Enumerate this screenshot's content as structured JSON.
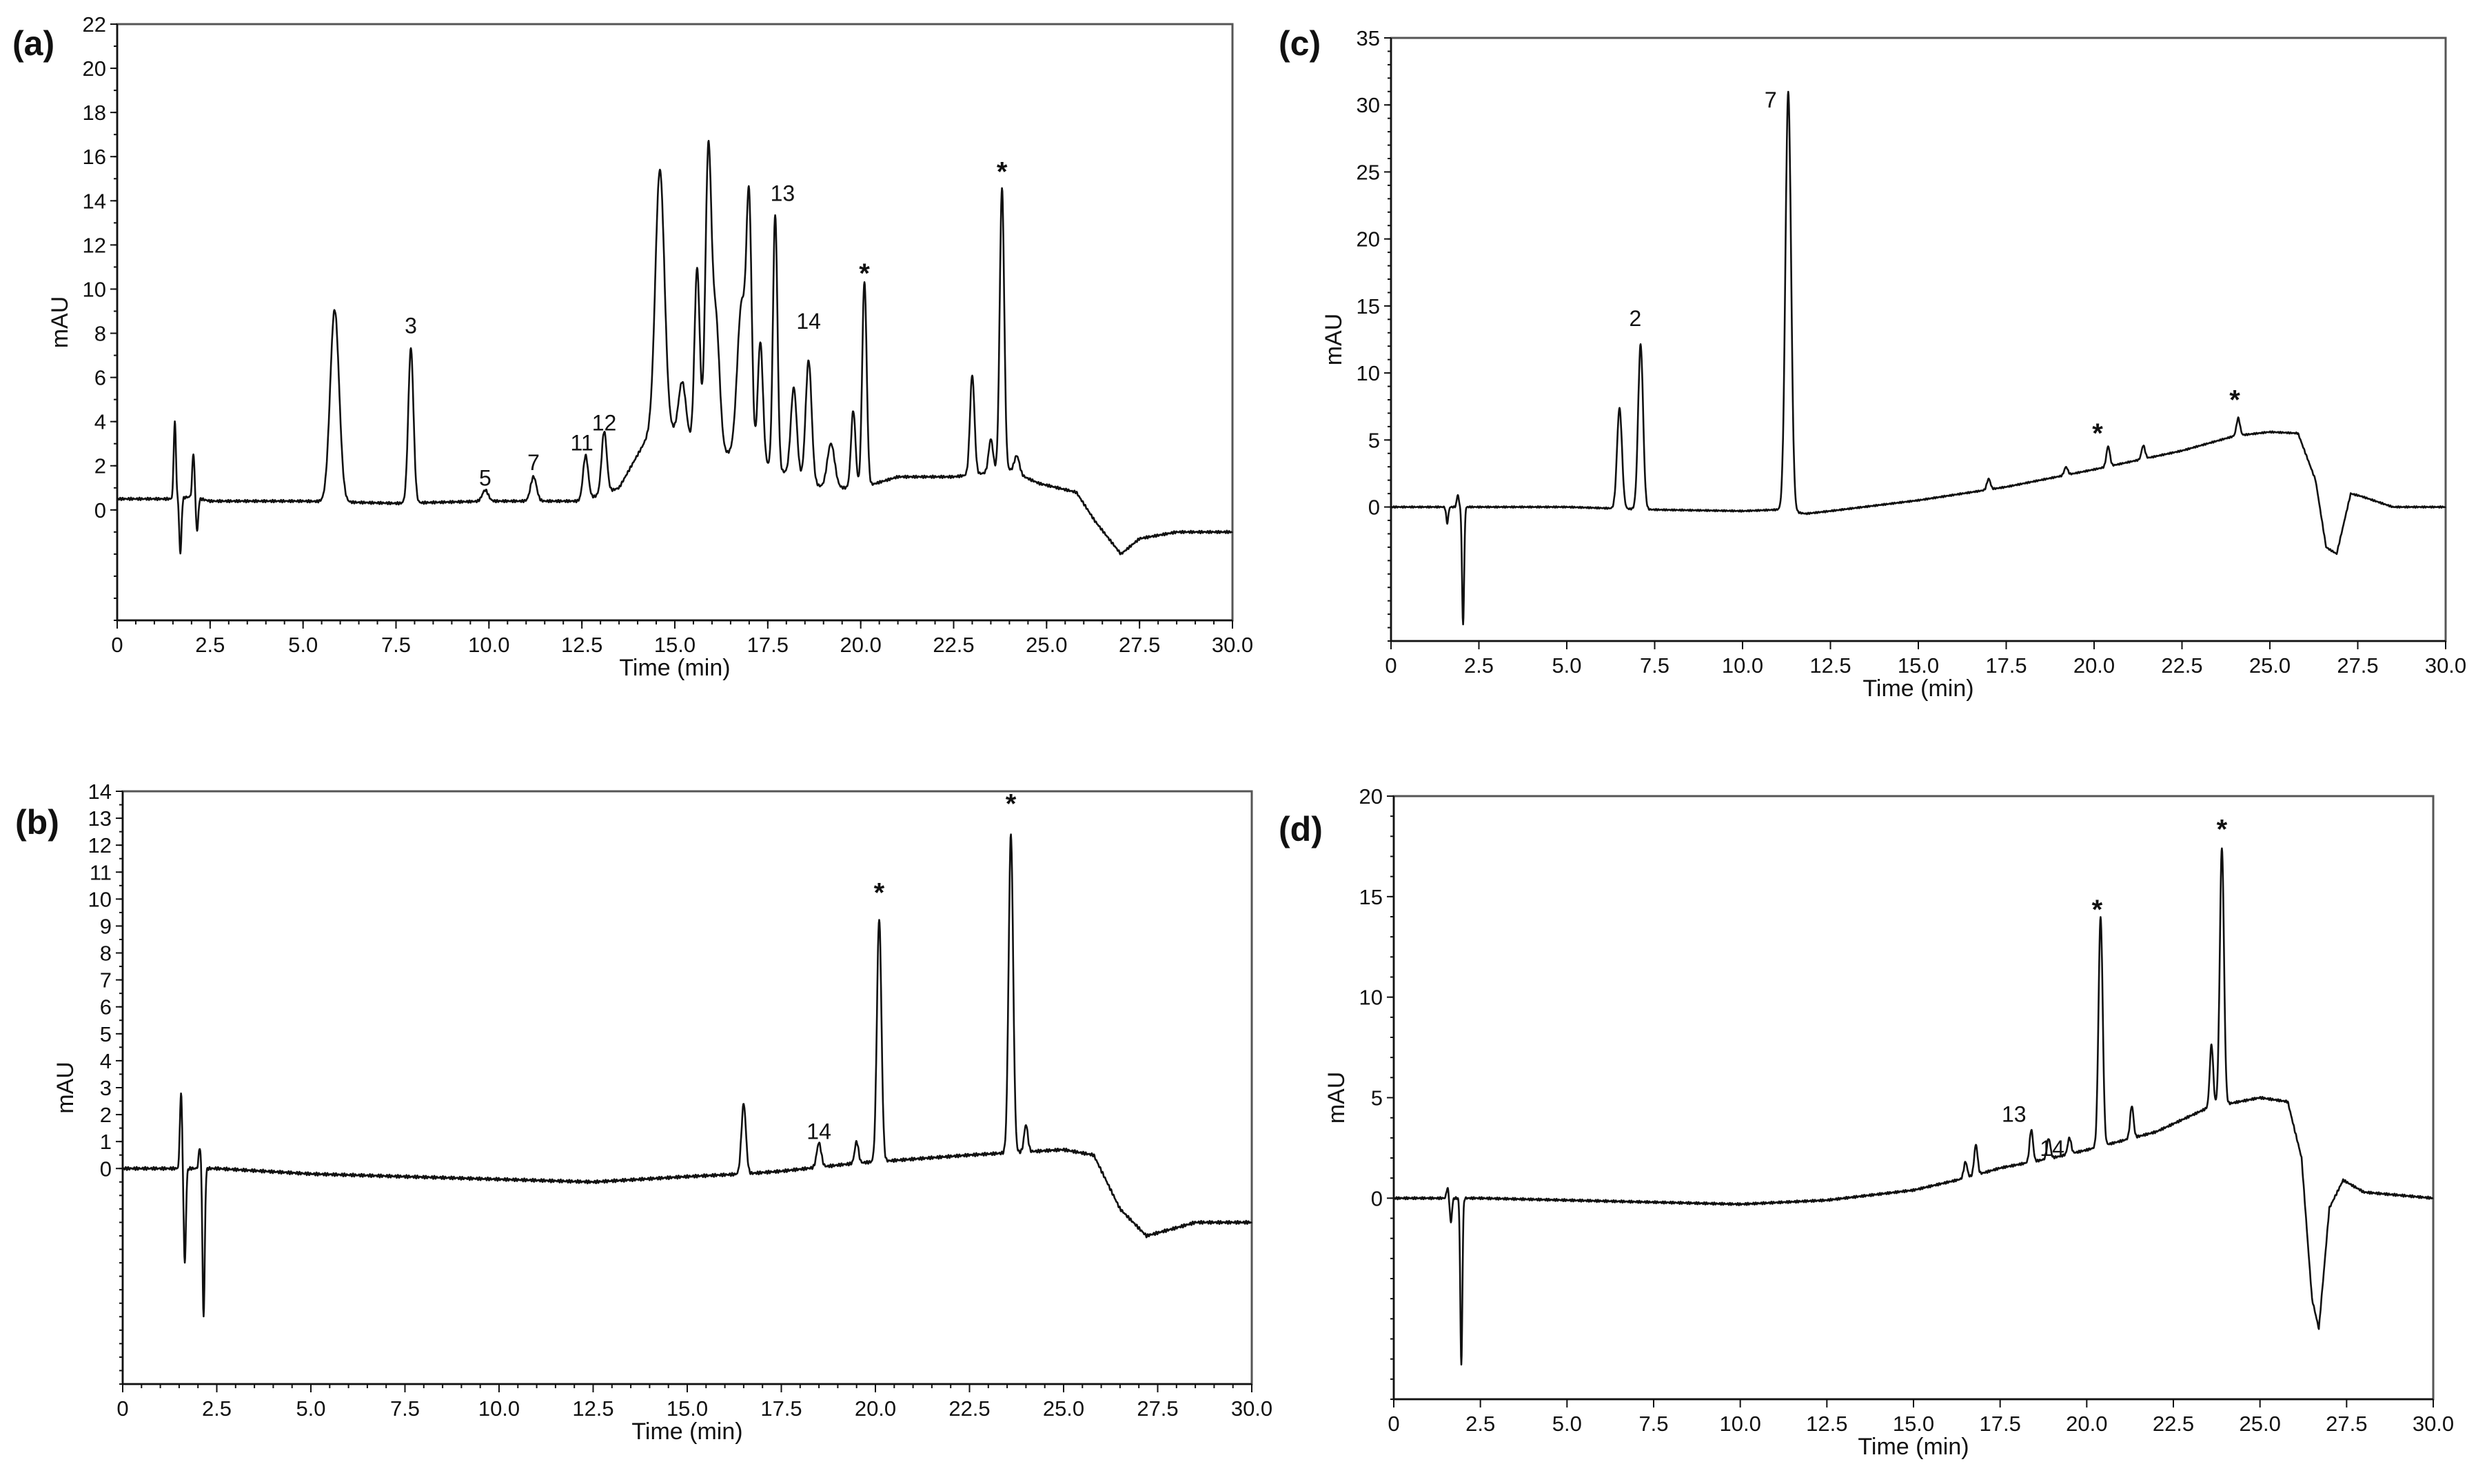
{
  "chart_data": [
    {
      "panel": "(a)",
      "type": "line",
      "xlabel": "Time (min)",
      "ylabel": "mAU",
      "xlim": [
        0,
        30
      ],
      "ylim": [
        -5,
        22
      ],
      "xticks": [
        "0",
        "2.5",
        "5.0",
        "7.5",
        "10.0",
        "12.5",
        "15.0",
        "17.5",
        "20.0",
        "22.5",
        "25.0",
        "27.5",
        "30.0"
      ],
      "yticks": [
        "0",
        "2",
        "4",
        "6",
        "8",
        "10",
        "12",
        "14",
        "16",
        "18",
        "20",
        "22"
      ],
      "baseline": [
        [
          0,
          0.5
        ],
        [
          1.5,
          0.5
        ],
        [
          2.0,
          0.6
        ],
        [
          2.5,
          0.4
        ],
        [
          5.0,
          0.4
        ],
        [
          7.5,
          0.3
        ],
        [
          10.0,
          0.4
        ],
        [
          12.5,
          0.4
        ],
        [
          13.5,
          1.0
        ],
        [
          14.0,
          2.5
        ],
        [
          14.5,
          4.0
        ],
        [
          15.5,
          3.0
        ],
        [
          17.5,
          2.0
        ],
        [
          19.0,
          1.0
        ],
        [
          20.0,
          1.0
        ],
        [
          21.0,
          1.5
        ],
        [
          22.5,
          1.5
        ],
        [
          24.0,
          1.8
        ],
        [
          24.8,
          1.2
        ],
        [
          25.8,
          0.8
        ],
        [
          26.3,
          -0.5
        ],
        [
          27.0,
          -2.0
        ],
        [
          27.5,
          -1.3
        ],
        [
          28.5,
          -1.0
        ],
        [
          30.0,
          -1.0
        ]
      ],
      "peaks": [
        [
          1.7,
          -2.5,
          0.03
        ],
        [
          1.55,
          3.5,
          0.03
        ],
        [
          2.05,
          2.0,
          0.03
        ],
        [
          2.15,
          -1.5,
          0.03
        ],
        [
          5.85,
          8.7,
          0.12
        ],
        [
          7.9,
          7.0,
          0.07
        ],
        [
          9.9,
          0.5,
          0.08
        ],
        [
          11.2,
          1.1,
          0.08
        ],
        [
          12.6,
          2.0,
          0.07
        ],
        [
          13.1,
          2.8,
          0.07
        ],
        [
          14.6,
          11.5,
          0.12
        ],
        [
          15.2,
          2.5,
          0.1
        ],
        [
          15.6,
          8.0,
          0.07
        ],
        [
          15.9,
          13.0,
          0.08
        ],
        [
          16.1,
          6.0,
          0.1
        ],
        [
          16.8,
          7.0,
          0.12
        ],
        [
          17.0,
          10.5,
          0.07
        ],
        [
          17.3,
          5.5,
          0.07
        ],
        [
          17.7,
          11.5,
          0.06
        ],
        [
          18.2,
          4.0,
          0.08
        ],
        [
          18.6,
          5.5,
          0.08
        ],
        [
          19.2,
          2.0,
          0.1
        ],
        [
          19.8,
          3.5,
          0.06
        ],
        [
          20.1,
          9.3,
          0.06
        ],
        [
          23.0,
          4.5,
          0.06
        ],
        [
          23.5,
          1.5,
          0.06
        ],
        [
          23.8,
          12.8,
          0.06
        ],
        [
          24.2,
          0.8,
          0.07
        ]
      ],
      "annotations": [
        {
          "text": "3",
          "x": 7.9,
          "y": 8.0
        },
        {
          "text": "5",
          "x": 9.9,
          "y": 1.1
        },
        {
          "text": "7",
          "x": 11.2,
          "y": 1.8
        },
        {
          "text": "11",
          "x": 12.5,
          "y": 2.7
        },
        {
          "text": "12",
          "x": 13.1,
          "y": 3.6
        },
        {
          "text": "13",
          "x": 17.9,
          "y": 14.0
        },
        {
          "text": "14",
          "x": 18.6,
          "y": 8.2
        },
        {
          "text": "*",
          "x": 20.1,
          "y": 10.3
        },
        {
          "text": "*",
          "x": 23.8,
          "y": 14.9
        }
      ]
    },
    {
      "panel": "(b)",
      "type": "line",
      "xlabel": "Time (min)",
      "ylabel": "mAU",
      "xlim": [
        0,
        30
      ],
      "ylim": [
        -8,
        14
      ],
      "xticks": [
        "0",
        "2.5",
        "5.0",
        "7.5",
        "10.0",
        "12.5",
        "15.0",
        "17.5",
        "20.0",
        "22.5",
        "25.0",
        "27.5",
        "30.0"
      ],
      "yticks": [
        "0",
        "1",
        "2",
        "3",
        "4",
        "5",
        "6",
        "7",
        "8",
        "9",
        "10",
        "11",
        "12",
        "13",
        "14"
      ],
      "baseline": [
        [
          0,
          0
        ],
        [
          1.5,
          0
        ],
        [
          2.5,
          0
        ],
        [
          5.0,
          -0.2
        ],
        [
          7.5,
          -0.3
        ],
        [
          10.0,
          -0.4
        ],
        [
          12.5,
          -0.5
        ],
        [
          15.0,
          -0.3
        ],
        [
          16.5,
          -0.2
        ],
        [
          17.5,
          -0.1
        ],
        [
          19.5,
          0.2
        ],
        [
          20.5,
          0.3
        ],
        [
          22.5,
          0.5
        ],
        [
          25.0,
          0.7
        ],
        [
          25.8,
          0.5
        ],
        [
          26.5,
          -1.5
        ],
        [
          27.2,
          -2.5
        ],
        [
          28.0,
          -2.2
        ],
        [
          28.5,
          -2.0
        ],
        [
          30.0,
          -2.0
        ]
      ],
      "peaks": [
        [
          1.55,
          2.8,
          0.03
        ],
        [
          1.65,
          -3.5,
          0.03
        ],
        [
          2.05,
          0.8,
          0.03
        ],
        [
          2.15,
          -5.5,
          0.03
        ],
        [
          16.5,
          2.6,
          0.06
        ],
        [
          18.5,
          0.9,
          0.06
        ],
        [
          19.5,
          0.8,
          0.05
        ],
        [
          20.1,
          9.0,
          0.06
        ],
        [
          23.6,
          11.8,
          0.06
        ],
        [
          24.0,
          1.0,
          0.05
        ]
      ],
      "annotations": [
        {
          "text": "14",
          "x": 18.5,
          "y": 1.1
        },
        {
          "text": "*",
          "x": 20.1,
          "y": 9.9
        },
        {
          "text": "*",
          "x": 23.6,
          "y": 13.2
        }
      ]
    },
    {
      "panel": "(c)",
      "type": "line",
      "xlabel": "Time (min)",
      "ylabel": "mAU",
      "xlim": [
        0,
        30
      ],
      "ylim": [
        -10,
        35
      ],
      "xticks": [
        "0",
        "2.5",
        "5.0",
        "7.5",
        "10.0",
        "12.5",
        "15.0",
        "17.5",
        "20.0",
        "22.5",
        "25.0",
        "27.5",
        "30.0"
      ],
      "yticks": [
        "0",
        "5",
        "10",
        "15",
        "20",
        "25",
        "30",
        "35"
      ],
      "baseline": [
        [
          0,
          0
        ],
        [
          1.5,
          0
        ],
        [
          2.5,
          0
        ],
        [
          5.0,
          0
        ],
        [
          7.5,
          -0.2
        ],
        [
          10.0,
          -0.3
        ],
        [
          11.0,
          -0.2
        ],
        [
          11.8,
          -0.5
        ],
        [
          12.5,
          -0.3
        ],
        [
          15.0,
          0.5
        ],
        [
          17.5,
          1.5
        ],
        [
          20.0,
          2.8
        ],
        [
          22.5,
          4.2
        ],
        [
          24.0,
          5.3
        ],
        [
          25.0,
          5.6
        ],
        [
          25.8,
          5.5
        ],
        [
          26.3,
          2.0
        ],
        [
          26.6,
          -3.0
        ],
        [
          26.9,
          -3.5
        ],
        [
          27.3,
          1.0
        ],
        [
          27.6,
          0.8
        ],
        [
          28.5,
          0
        ],
        [
          30.0,
          0
        ]
      ],
      "peaks": [
        [
          1.6,
          -1.2,
          0.03
        ],
        [
          1.9,
          0.9,
          0.03
        ],
        [
          2.05,
          -8.7,
          0.03
        ],
        [
          6.5,
          7.5,
          0.07
        ],
        [
          7.1,
          12.3,
          0.07
        ],
        [
          11.3,
          31.3,
          0.08
        ],
        [
          17.0,
          0.8,
          0.05
        ],
        [
          19.2,
          0.6,
          0.05
        ],
        [
          20.4,
          1.5,
          0.05
        ],
        [
          21.4,
          1.0,
          0.05
        ],
        [
          24.1,
          1.3,
          0.05
        ]
      ],
      "annotations": [
        {
          "text": "2",
          "x": 6.95,
          "y": 13.5
        },
        {
          "text": "7",
          "x": 10.8,
          "y": 29.8
        },
        {
          "text": "*",
          "x": 20.1,
          "y": 4.8
        },
        {
          "text": "*",
          "x": 24.0,
          "y": 7.3
        }
      ]
    },
    {
      "panel": "(d)",
      "type": "line",
      "xlabel": "Time (min)",
      "ylabel": "mAU",
      "xlim": [
        0,
        30
      ],
      "ylim": [
        -10,
        20
      ],
      "xticks": [
        "0",
        "2.5",
        "5.0",
        "7.5",
        "10.0",
        "12.5",
        "15.0",
        "17.5",
        "20.0",
        "22.5",
        "25.0",
        "27.5",
        "30.0"
      ],
      "yticks": [
        "0",
        "5",
        "10",
        "15",
        "20"
      ],
      "baseline": [
        [
          0,
          0
        ],
        [
          1.5,
          0
        ],
        [
          2.5,
          0
        ],
        [
          5.0,
          -0.1
        ],
        [
          7.5,
          -0.2
        ],
        [
          10.0,
          -0.3
        ],
        [
          12.5,
          -0.1
        ],
        [
          15.0,
          0.4
        ],
        [
          16.5,
          1.0
        ],
        [
          17.5,
          1.5
        ],
        [
          19.0,
          2.0
        ],
        [
          20.0,
          2.4
        ],
        [
          22.0,
          3.3
        ],
        [
          23.5,
          4.5
        ],
        [
          25.0,
          5.0
        ],
        [
          25.8,
          4.8
        ],
        [
          26.2,
          2.0
        ],
        [
          26.5,
          -5.0
        ],
        [
          26.7,
          -6.5
        ],
        [
          27.0,
          -0.5
        ],
        [
          27.4,
          0.9
        ],
        [
          28.0,
          0.3
        ],
        [
          30.0,
          0
        ]
      ],
      "peaks": [
        [
          1.55,
          0.5,
          0.03
        ],
        [
          1.65,
          -1.2,
          0.03
        ],
        [
          1.95,
          -8.3,
          0.03
        ],
        [
          16.5,
          0.8,
          0.05
        ],
        [
          16.8,
          1.5,
          0.05
        ],
        [
          18.4,
          1.6,
          0.05
        ],
        [
          18.9,
          1.0,
          0.05
        ],
        [
          19.5,
          0.8,
          0.05
        ],
        [
          20.4,
          11.4,
          0.06
        ],
        [
          21.3,
          1.6,
          0.05
        ],
        [
          23.6,
          3.1,
          0.05
        ],
        [
          23.9,
          12.8,
          0.06
        ]
      ],
      "annotations": [
        {
          "text": "13",
          "x": 17.9,
          "y": 3.8
        },
        {
          "text": "14",
          "x": 19.0,
          "y": 2.1
        },
        {
          "text": "*",
          "x": 20.3,
          "y": 13.9
        },
        {
          "text": "*",
          "x": 23.9,
          "y": 17.9
        }
      ]
    }
  ]
}
